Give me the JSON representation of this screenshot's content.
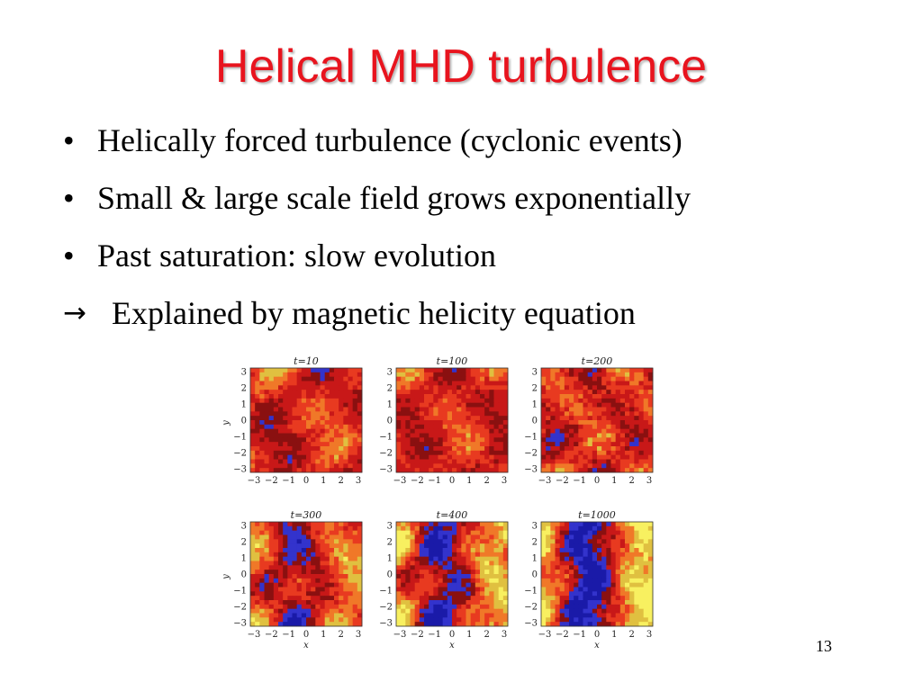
{
  "slide": {
    "title": "Helical MHD turbulence",
    "page_number": "13",
    "colors": {
      "title": "#e8141e"
    }
  },
  "bullets": [
    {
      "marker": "•",
      "text": "Helically forced turbulence (cyclonic events)"
    },
    {
      "marker": "•",
      "text": "Small & large scale field grows exponentially"
    },
    {
      "marker": "•",
      "text": "Past saturation: slow evolution"
    },
    {
      "marker": "→",
      "text": "Explained by magnetic helicity equation"
    }
  ],
  "figure": {
    "panels": [
      {
        "t_label": "t=10",
        "pattern": "fine-red"
      },
      {
        "t_label": "t=100",
        "pattern": "fine-red"
      },
      {
        "t_label": "t=200",
        "pattern": "fine-red-yellow"
      },
      {
        "t_label": "t=300",
        "pattern": "emerging-bands"
      },
      {
        "t_label": "t=400",
        "pattern": "bands"
      },
      {
        "t_label": "t=1000",
        "pattern": "strong-bands"
      }
    ],
    "ticks": [
      "3",
      "2",
      "1",
      "0",
      "−1",
      "−2",
      "−3"
    ],
    "x_ticks": [
      "−3",
      "−2",
      "−1",
      "0",
      "1",
      "2",
      "3"
    ],
    "x_axis_label": "x",
    "y_axis_label": "y",
    "colormap": [
      "#1a1aa8",
      "#3333cc",
      "#8a1010",
      "#c81818",
      "#e83a20",
      "#f07828",
      "#e0c040",
      "#f8f060"
    ]
  }
}
